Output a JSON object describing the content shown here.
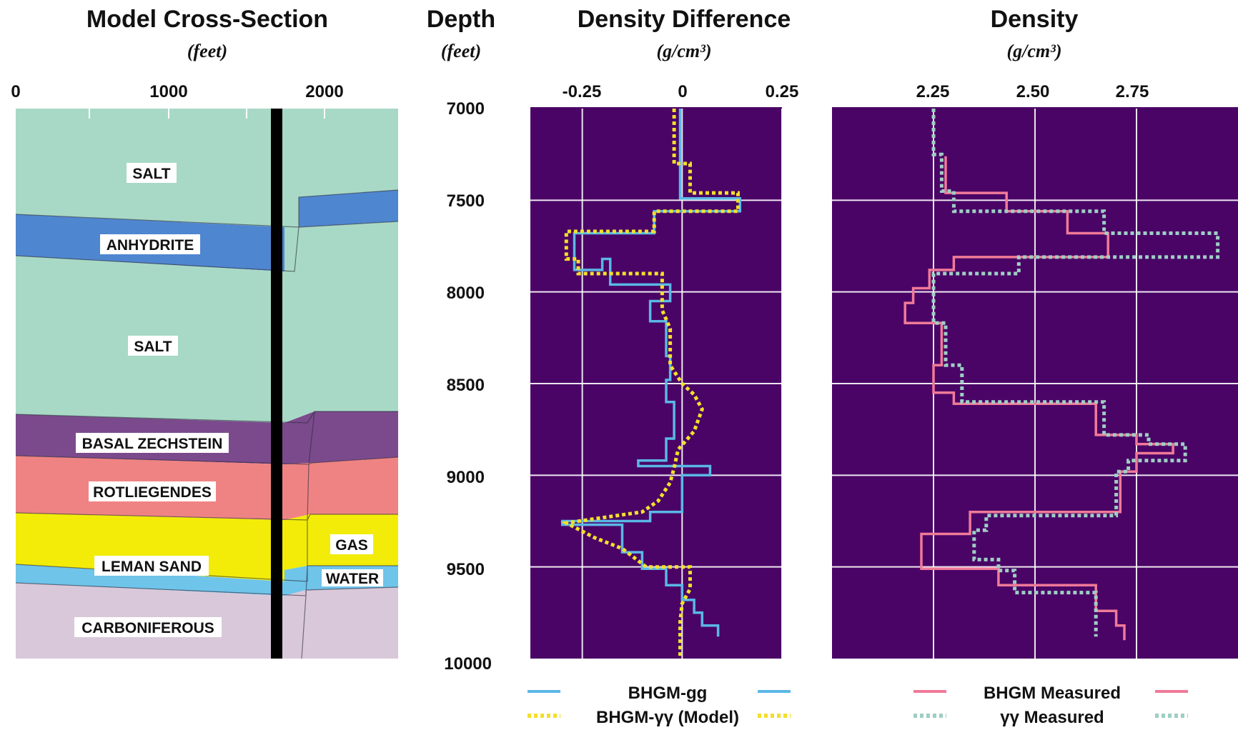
{
  "colors": {
    "plot_bg": "#4a0466",
    "grid": "#ffffff",
    "bhgm_gg": "#5ab8e6",
    "bhgm_yy_model": "#f2e02a",
    "bhgm_measured": "#f07a98",
    "yy_measured": "#9ecfc4",
    "borehole": "#000000"
  },
  "cross_section": {
    "title": "Model Cross-Section",
    "unit": "(feet)",
    "x_ticks": [
      "0",
      "1000",
      "2000"
    ],
    "layers": [
      {
        "name": "SALT",
        "color": "#a8d9c6"
      },
      {
        "name": "ANHYDRITE",
        "color": "#4f86d0"
      },
      {
        "name": "SALT",
        "color": "#a8d9c6"
      },
      {
        "name": "BASAL ZECHSTEIN",
        "color": "#7b4a8c"
      },
      {
        "name": "ROTLIEGENDES",
        "color": "#ef8383"
      },
      {
        "name": "GAS",
        "color": "#f2ec08"
      },
      {
        "name": "LEMAN SAND",
        "color": "#f2ec08"
      },
      {
        "name": "WATER",
        "color": "#6fc4ea"
      },
      {
        "name": "CARBONIFEROUS",
        "color": "#d9c8da"
      }
    ]
  },
  "depth_axis": {
    "title": "Depth",
    "unit": "(feet)",
    "ticks": [
      "7000",
      "7500",
      "8000",
      "8500",
      "9000",
      "9500",
      "10000"
    ]
  },
  "density_difference": {
    "title": "Density Difference",
    "unit": "(g/cm³)",
    "x_ticks": [
      "-0.25",
      "0",
      "0.25"
    ]
  },
  "density": {
    "title": "Density",
    "unit": "(g/cm³)",
    "x_ticks": [
      "2.25",
      "2.50",
      "2.75"
    ]
  },
  "legend": {
    "bhgm_gg": "BHGM-gg",
    "bhgm_yy_model": "BHGM-γγ (Model)",
    "bhgm_measured": "BHGM Measured",
    "yy_measured": "γγ Measured"
  },
  "chart_data": [
    {
      "type": "line",
      "panel": "density_difference",
      "xlabel": "Density Difference",
      "ylabel": "Depth",
      "xlim": [
        -0.38,
        0.25
      ],
      "ylim": [
        10000,
        7000
      ],
      "grid": true,
      "legend_position": "bottom",
      "series": [
        {
          "name": "BHGM-gg",
          "style": "solid",
          "points": [
            [
              -0.005,
              7000
            ],
            [
              -0.005,
              7490
            ],
            [
              0.15,
              7490
            ],
            [
              0.15,
              7560
            ],
            [
              0.01,
              7560
            ],
            [
              0.01,
              7490
            ],
            [
              -0.005,
              7490
            ]
          ],
          "steps": [
            [
              -0.005,
              7000
            ],
            [
              -0.005,
              7490
            ],
            [
              0.145,
              7490
            ],
            [
              0.145,
              7560
            ],
            [
              -0.07,
              7560
            ],
            [
              -0.07,
              7680
            ],
            [
              -0.27,
              7680
            ],
            [
              -0.27,
              7880
            ],
            [
              -0.2,
              7880
            ],
            [
              -0.2,
              7820
            ],
            [
              -0.18,
              7820
            ],
            [
              -0.18,
              7960
            ],
            [
              -0.03,
              7960
            ],
            [
              -0.03,
              8050
            ],
            [
              -0.08,
              8050
            ],
            [
              -0.08,
              8160
            ],
            [
              -0.04,
              8160
            ],
            [
              -0.04,
              8350
            ],
            [
              -0.03,
              8350
            ],
            [
              -0.03,
              8480
            ],
            [
              -0.04,
              8480
            ],
            [
              -0.04,
              8600
            ],
            [
              -0.02,
              8600
            ],
            [
              -0.02,
              8800
            ],
            [
              -0.04,
              8800
            ],
            [
              -0.04,
              8920
            ],
            [
              -0.11,
              8920
            ],
            [
              -0.11,
              8950
            ],
            [
              0.07,
              8950
            ],
            [
              0.07,
              9000
            ],
            [
              0.0,
              9000
            ],
            [
              0.0,
              9200
            ],
            [
              -0.08,
              9200
            ],
            [
              -0.08,
              9250
            ],
            [
              -0.3,
              9250
            ],
            [
              -0.3,
              9270
            ],
            [
              -0.15,
              9270
            ],
            [
              -0.15,
              9420
            ],
            [
              -0.1,
              9420
            ],
            [
              -0.1,
              9510
            ],
            [
              -0.04,
              9510
            ],
            [
              -0.04,
              9600
            ],
            [
              0.0,
              9600
            ],
            [
              0.0,
              9680
            ],
            [
              0.03,
              9680
            ],
            [
              0.03,
              9750
            ],
            [
              0.05,
              9750
            ],
            [
              0.05,
              9820
            ],
            [
              0.09,
              9820
            ],
            [
              0.09,
              9880
            ]
          ]
        },
        {
          "name": "BHGM-γγ (Model)",
          "style": "dotted",
          "steps": [
            [
              -0.02,
              7000
            ],
            [
              -0.02,
              7300
            ],
            [
              0.02,
              7300
            ],
            [
              0.02,
              7460
            ],
            [
              0.14,
              7460
            ],
            [
              0.14,
              7560
            ],
            [
              -0.07,
              7560
            ],
            [
              -0.07,
              7670
            ],
            [
              -0.29,
              7670
            ],
            [
              -0.29,
              7820
            ],
            [
              -0.26,
              7820
            ],
            [
              -0.26,
              7900
            ],
            [
              -0.05,
              7900
            ],
            [
              -0.05,
              8000
            ],
            [
              -0.05,
              8100
            ],
            [
              -0.03,
              8200
            ],
            [
              -0.03,
              8400
            ],
            [
              0.0,
              8500
            ],
            [
              0.03,
              8560
            ],
            [
              0.05,
              8640
            ],
            [
              0.03,
              8760
            ],
            [
              -0.01,
              8860
            ],
            [
              -0.02,
              8960
            ],
            [
              -0.03,
              9040
            ],
            [
              -0.06,
              9140
            ],
            [
              -0.1,
              9200
            ],
            [
              -0.29,
              9260
            ],
            [
              -0.22,
              9340
            ],
            [
              -0.15,
              9400
            ],
            [
              -0.12,
              9450
            ],
            [
              -0.09,
              9500
            ],
            [
              0.02,
              9500
            ],
            [
              0.02,
              9620
            ],
            [
              0.0,
              9700
            ],
            [
              -0.005,
              9800
            ],
            [
              -0.005,
              10000
            ]
          ]
        }
      ]
    },
    {
      "type": "line",
      "panel": "density",
      "xlabel": "Density",
      "ylabel": "Depth",
      "xlim": [
        2.0,
        3.0
      ],
      "ylim": [
        10000,
        7000
      ],
      "grid": true,
      "legend_position": "bottom",
      "series": [
        {
          "name": "BHGM Measured",
          "style": "solid",
          "steps": [
            [
              2.28,
              7260
            ],
            [
              2.28,
              7460
            ],
            [
              2.43,
              7460
            ],
            [
              2.43,
              7560
            ],
            [
              2.58,
              7560
            ],
            [
              2.58,
              7680
            ],
            [
              2.68,
              7680
            ],
            [
              2.68,
              7810
            ],
            [
              2.3,
              7810
            ],
            [
              2.3,
              7880
            ],
            [
              2.24,
              7880
            ],
            [
              2.24,
              7980
            ],
            [
              2.2,
              7980
            ],
            [
              2.2,
              8060
            ],
            [
              2.18,
              8060
            ],
            [
              2.18,
              8170
            ],
            [
              2.27,
              8170
            ],
            [
              2.27,
              8400
            ],
            [
              2.25,
              8400
            ],
            [
              2.25,
              8550
            ],
            [
              2.3,
              8550
            ],
            [
              2.3,
              8610
            ],
            [
              2.65,
              8610
            ],
            [
              2.65,
              8780
            ],
            [
              2.75,
              8780
            ],
            [
              2.75,
              8830
            ],
            [
              2.84,
              8830
            ],
            [
              2.84,
              8880
            ],
            [
              2.75,
              8880
            ],
            [
              2.75,
              8980
            ],
            [
              2.71,
              8980
            ],
            [
              2.71,
              9200
            ],
            [
              2.34,
              9200
            ],
            [
              2.34,
              9320
            ],
            [
              2.22,
              9320
            ],
            [
              2.22,
              9510
            ],
            [
              2.41,
              9510
            ],
            [
              2.41,
              9600
            ],
            [
              2.65,
              9600
            ],
            [
              2.65,
              9740
            ],
            [
              2.7,
              9740
            ],
            [
              2.7,
              9820
            ],
            [
              2.72,
              9820
            ],
            [
              2.72,
              9900
            ]
          ]
        },
        {
          "name": "γγ Measured",
          "style": "dotted",
          "steps": [
            [
              2.25,
              7000
            ],
            [
              2.25,
              7250
            ],
            [
              2.27,
              7250
            ],
            [
              2.27,
              7450
            ],
            [
              2.3,
              7450
            ],
            [
              2.3,
              7560
            ],
            [
              2.67,
              7560
            ],
            [
              2.67,
              7680
            ],
            [
              2.95,
              7680
            ],
            [
              2.95,
              7810
            ],
            [
              2.46,
              7810
            ],
            [
              2.46,
              7900
            ],
            [
              2.25,
              7900
            ],
            [
              2.25,
              8170
            ],
            [
              2.28,
              8170
            ],
            [
              2.28,
              8400
            ],
            [
              2.32,
              8400
            ],
            [
              2.32,
              8600
            ],
            [
              2.67,
              8600
            ],
            [
              2.67,
              8780
            ],
            [
              2.78,
              8780
            ],
            [
              2.78,
              8830
            ],
            [
              2.87,
              8830
            ],
            [
              2.87,
              8920
            ],
            [
              2.73,
              8920
            ],
            [
              2.73,
              8980
            ],
            [
              2.7,
              8980
            ],
            [
              2.7,
              9220
            ],
            [
              2.38,
              9220
            ],
            [
              2.38,
              9300
            ],
            [
              2.35,
              9300
            ],
            [
              2.35,
              9460
            ],
            [
              2.41,
              9460
            ],
            [
              2.41,
              9520
            ],
            [
              2.45,
              9520
            ],
            [
              2.45,
              9640
            ],
            [
              2.65,
              9640
            ],
            [
              2.65,
              9760
            ],
            [
              2.65,
              9880
            ]
          ]
        }
      ]
    }
  ]
}
